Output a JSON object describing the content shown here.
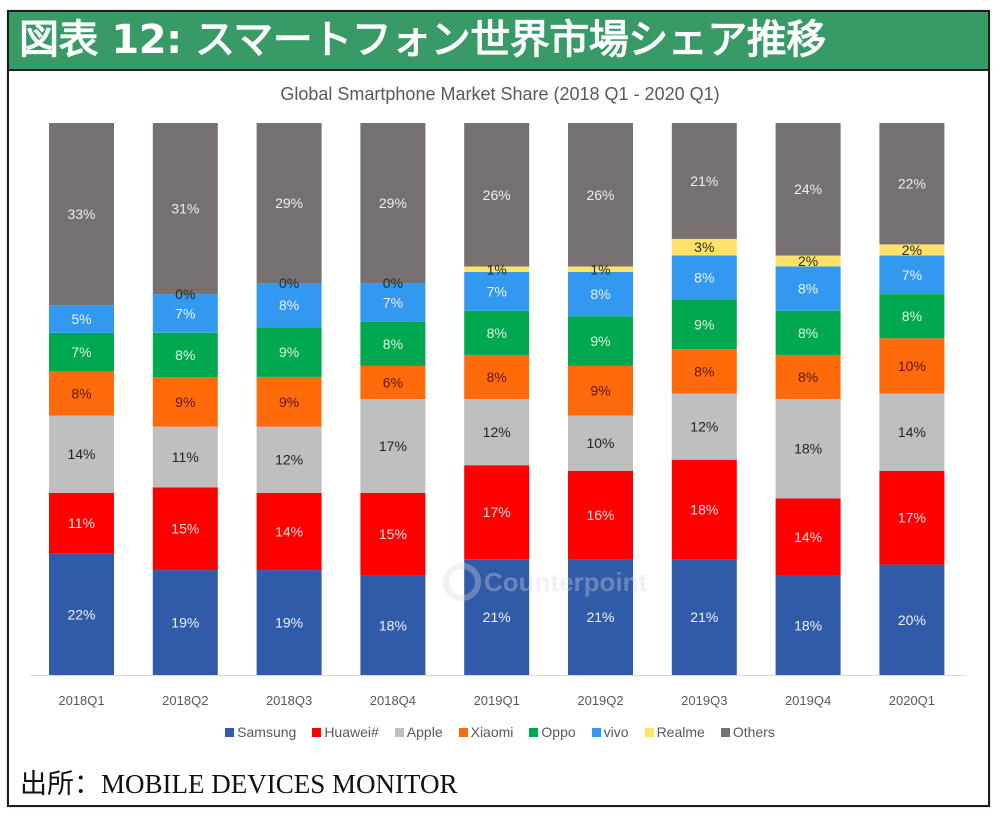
{
  "header": {
    "title": "図表 12: スマートフォン世界市場シェア推移"
  },
  "source": {
    "text": "出所：MOBILE DEVICES MONITOR"
  },
  "watermark": {
    "text": "Counterpoint"
  },
  "colors": {
    "header_green": "#389A66",
    "axis_line": "#D9D9D9",
    "text_gray": "#595959"
  },
  "chart_data": {
    "type": "bar",
    "stacked": true,
    "title": "Global Smartphone Market Share (2018 Q1 - 2020 Q1)",
    "xlabel": "",
    "ylabel": "",
    "ylim": [
      0,
      100
    ],
    "unit": "%",
    "grid": false,
    "legend_position": "bottom",
    "categories": [
      "2018Q1",
      "2018Q2",
      "2018Q3",
      "2018Q4",
      "2019Q1",
      "2019Q2",
      "2019Q3",
      "2019Q4",
      "2020Q1"
    ],
    "series": [
      {
        "name": "Samsung",
        "color": "#2F5BA8",
        "label_color": "#EEF2FA",
        "values": [
          22,
          19,
          19,
          18,
          21,
          21,
          21,
          18,
          20
        ],
        "data_labels": [
          "22%",
          "19%",
          "19%",
          "18%",
          "21%",
          "21%",
          "21%",
          "18%",
          "20%"
        ]
      },
      {
        "name": "Huawei#",
        "color": "#FF0000",
        "label_color": "#FFE4E4",
        "values": [
          11,
          15,
          14,
          15,
          17,
          16,
          18,
          14,
          17
        ],
        "data_labels": [
          "11%",
          "15%",
          "14%",
          "15%",
          "17%",
          "16%",
          "18%",
          "14%",
          "17%"
        ]
      },
      {
        "name": "Apple",
        "color": "#BFBFBF",
        "label_color": "#222222",
        "values": [
          14,
          11,
          12,
          17,
          12,
          10,
          12,
          18,
          14
        ],
        "data_labels": [
          "14%",
          "11%",
          "12%",
          "17%",
          "12%",
          "10%",
          "12%",
          "18%",
          "14%"
        ]
      },
      {
        "name": "Xiaomi",
        "color": "#FF6A0A",
        "label_color": "#5A1800",
        "values": [
          8,
          9,
          9,
          6,
          8,
          9,
          8,
          8,
          10
        ],
        "data_labels": [
          "8%",
          "9%",
          "9%",
          "6%",
          "8%",
          "9%",
          "8%",
          "8%",
          "10%"
        ]
      },
      {
        "name": "Oppo",
        "color": "#00A84F",
        "label_color": "#DDF5E2",
        "values": [
          7,
          8,
          9,
          8,
          8,
          9,
          9,
          8,
          8
        ],
        "data_labels": [
          "7%",
          "8%",
          "9%",
          "8%",
          "8%",
          "9%",
          "9%",
          "8%",
          "8%"
        ]
      },
      {
        "name": "vivo",
        "color": "#3399F0",
        "label_color": "#EAF4FF",
        "values": [
          5,
          7,
          8,
          7,
          7,
          8,
          8,
          8,
          7
        ],
        "data_labels": [
          "5%",
          "7%",
          "8%",
          "7%",
          "7%",
          "8%",
          "8%",
          "8%",
          "7%"
        ]
      },
      {
        "name": "Realme",
        "color": "#FFE26A",
        "label_color": "#2A2A1A",
        "values": [
          null,
          0,
          0,
          0,
          1,
          1,
          3,
          2,
          2
        ],
        "data_labels": [
          null,
          "0%",
          "0%",
          "0%",
          "1%",
          "1%",
          "3%",
          "2%",
          "2%"
        ]
      },
      {
        "name": "Others",
        "color": "#767070",
        "label_color": "#EFEFEF",
        "values": [
          33,
          31,
          29,
          29,
          26,
          26,
          21,
          24,
          22
        ],
        "data_labels": [
          "33%",
          "31%",
          "29%",
          "29%",
          "26%",
          "26%",
          "21%",
          "24%",
          "22%"
        ]
      }
    ]
  }
}
